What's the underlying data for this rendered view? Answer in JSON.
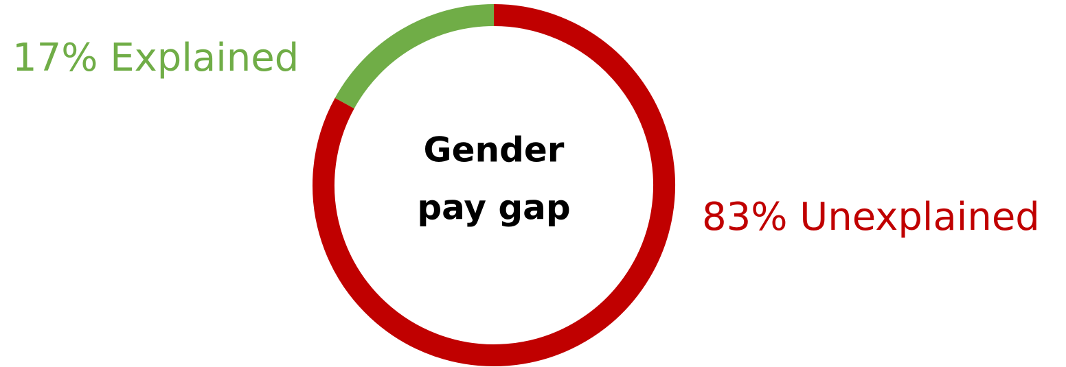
{
  "chart_data": {
    "type": "donut",
    "categories": [
      "Explained",
      "Unexplained"
    ],
    "values": [
      17,
      83
    ],
    "value_labels": [
      "17%",
      "83%"
    ],
    "colors": [
      "#70ad47",
      "#c00000"
    ],
    "direction": "counterclockwise",
    "center_label": [
      "Gender",
      "pay gap"
    ]
  }
}
